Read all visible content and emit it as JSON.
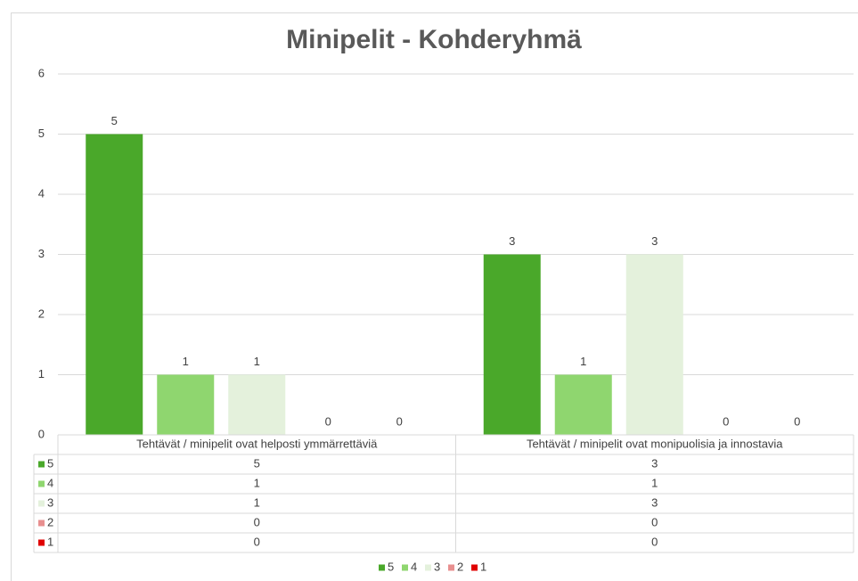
{
  "chart_data": {
    "type": "bar",
    "title": "Minipelit - Kohderyhmä",
    "categories": [
      "Tehtävät / minipelit ovat helposti ymmärrettäviä",
      "Tehtävät / minipelit ovat monipuolisia ja innostavia"
    ],
    "series": [
      {
        "name": "5",
        "color": "#4aa82a",
        "values": [
          5,
          3
        ]
      },
      {
        "name": "4",
        "color": "#8fd66f",
        "values": [
          1,
          1
        ]
      },
      {
        "name": "3",
        "color": "#e4f1dc",
        "values": [
          1,
          3
        ]
      },
      {
        "name": "2",
        "color": "#e88f8f",
        "values": [
          0,
          0
        ]
      },
      {
        "name": "1",
        "color": "#e00000",
        "values": [
          0,
          0
        ]
      }
    ],
    "ylim": [
      0,
      6
    ],
    "yticks": [
      0,
      1,
      2,
      3,
      4,
      5,
      6
    ],
    "grid": true,
    "legend": "bottom",
    "data_table": true
  }
}
